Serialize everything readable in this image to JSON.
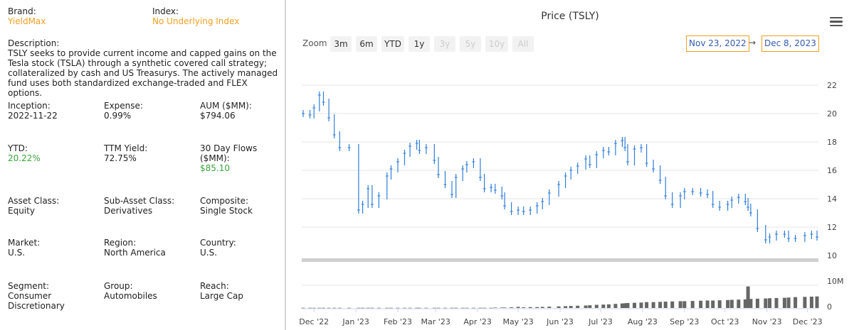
{
  "details": {
    "brand": {
      "label": "Brand:",
      "value": "YieldMax"
    },
    "index": {
      "label": "Index:",
      "value": "No Underlying Index"
    },
    "description": {
      "label": "Description:",
      "value": "TSLY seeks to provide current income and capped gains on the Tesla stock (TSLA) through a synthetic covered call strategy; collateralized by cash and US Treasurys. The actively managed fund uses both standardized exchange-traded and FLEX options."
    },
    "inception": {
      "label": "Inception:",
      "value": "2022-11-22"
    },
    "expense": {
      "label": "Expense:",
      "value": "0.99%"
    },
    "aum": {
      "label": "AUM ($MM):",
      "value": "$794.06"
    },
    "ytd": {
      "label": "YTD:",
      "value": "20.22%"
    },
    "ttm_yield": {
      "label": "TTM Yield:",
      "value": "72.75%"
    },
    "flows": {
      "label": "30 Day Flows ($MM):",
      "value": "$85.10"
    },
    "asset_class": {
      "label": "Asset Class:",
      "value": "Equity"
    },
    "sub_asset_class": {
      "label": "Sub-Asset Class:",
      "value": "Derivatives"
    },
    "composite": {
      "label": "Composite:",
      "value": "Single Stock"
    },
    "market": {
      "label": "Market:",
      "value": "U.S."
    },
    "region": {
      "label": "Region:",
      "value": "North America"
    },
    "country": {
      "label": "Country:",
      "value": "U.S."
    },
    "segment": {
      "label": "Segment:",
      "value": "Consumer Discretionary"
    },
    "group": {
      "label": "Group:",
      "value": "Automobiles"
    },
    "reach": {
      "label": "Reach:",
      "value": "Large Cap"
    }
  },
  "chart": {
    "title": "Price (TSLY)",
    "zoom_label": "Zoom",
    "zoom_buttons": [
      {
        "label": "3m",
        "enabled": true
      },
      {
        "label": "6m",
        "enabled": true
      },
      {
        "label": "YTD",
        "enabled": true
      },
      {
        "label": "1y",
        "enabled": true
      },
      {
        "label": "3y",
        "enabled": false
      },
      {
        "label": "5y",
        "enabled": false
      },
      {
        "label": "10y",
        "enabled": false
      },
      {
        "label": "All",
        "enabled": false
      }
    ],
    "range_from": "Nov 23, 2022",
    "range_arrow": "→",
    "range_to": "Dec 8, 2023",
    "menu_icon": "hamburger-menu-icon",
    "colors": {
      "series": "#2f7ed8",
      "accent": "#f0a020",
      "link": "#335cad",
      "positive": "#3aa33a"
    }
  },
  "chart_data": {
    "type": "line",
    "title": "Price (TSLY)",
    "price_axis": {
      "ticks": [
        10,
        12,
        14,
        16,
        18,
        20,
        22
      ],
      "range": [
        10,
        22
      ]
    },
    "volume_axis": {
      "tick_labels": [
        "0",
        "10M"
      ],
      "range": [
        0,
        10000000
      ]
    },
    "x_axis": {
      "tick_labels": [
        "Dec '22",
        "Jan '23",
        "Feb '23",
        "Mar '23",
        "Apr '23",
        "May '23",
        "Jun '23",
        "Jul '23",
        "Aug '23",
        "Sep '23",
        "Oct '23",
        "Nov '23",
        "Dec '23"
      ]
    },
    "series": [
      {
        "x": [
          "2022-11-23",
          "2022-11-28",
          "2022-12-01",
          "2022-12-05",
          "2022-12-08",
          "2022-12-12",
          "2022-12-16",
          "2022-12-20",
          "2022-12-27",
          "2023-01-03",
          "2023-01-06",
          "2023-01-10",
          "2023-01-13",
          "2023-01-18",
          "2023-01-24",
          "2023-01-27",
          "2023-02-01",
          "2023-02-06",
          "2023-02-10",
          "2023-02-15",
          "2023-02-17",
          "2023-02-22",
          "2023-02-28",
          "2023-03-03",
          "2023-03-08",
          "2023-03-13",
          "2023-03-16",
          "2023-03-21",
          "2023-03-24",
          "2023-03-29",
          "2023-04-03",
          "2023-04-06",
          "2023-04-11",
          "2023-04-14",
          "2023-04-19",
          "2023-04-21",
          "2023-04-26",
          "2023-05-01",
          "2023-05-05",
          "2023-05-10",
          "2023-05-15",
          "2023-05-19",
          "2023-05-24",
          "2023-05-31",
          "2023-06-05",
          "2023-06-09",
          "2023-06-14",
          "2023-06-20",
          "2023-06-23",
          "2023-06-28",
          "2023-07-03",
          "2023-07-07",
          "2023-07-12",
          "2023-07-17",
          "2023-07-19",
          "2023-07-21",
          "2023-07-26",
          "2023-07-31",
          "2023-08-04",
          "2023-08-09",
          "2023-08-14",
          "2023-08-18",
          "2023-08-23",
          "2023-08-29",
          "2023-09-01",
          "2023-09-07",
          "2023-09-13",
          "2023-09-18",
          "2023-09-22",
          "2023-09-27",
          "2023-10-03",
          "2023-10-06",
          "2023-10-11",
          "2023-10-16",
          "2023-10-18",
          "2023-10-20",
          "2023-10-25",
          "2023-10-31",
          "2023-11-03",
          "2023-11-08",
          "2023-11-14",
          "2023-11-17",
          "2023-11-22",
          "2023-11-29",
          "2023-12-04",
          "2023-12-08"
        ],
        "values": [
          20.0,
          19.9,
          20.4,
          21.3,
          20.8,
          19.7,
          18.5,
          17.6,
          17.6,
          13.2,
          13.6,
          14.7,
          13.6,
          14.2,
          15.6,
          16.1,
          16.6,
          17.2,
          17.7,
          17.9,
          17.4,
          17.6,
          16.7,
          15.7,
          15.0,
          14.3,
          15.5,
          16.1,
          16.4,
          16.6,
          15.5,
          14.7,
          14.8,
          14.6,
          14.2,
          13.5,
          13.1,
          13.2,
          13.1,
          13.2,
          13.5,
          13.8,
          14.4,
          15.0,
          15.6,
          16.0,
          16.3,
          16.8,
          16.4,
          17.1,
          17.4,
          17.3,
          17.9,
          18.1,
          17.6,
          16.6,
          17.5,
          17.6,
          16.5,
          16.1,
          15.3,
          14.2,
          13.6,
          14.2,
          14.5,
          14.5,
          14.4,
          14.3,
          13.6,
          13.4,
          13.6,
          13.9,
          14.1,
          13.8,
          13.4,
          13.0,
          11.9,
          11.1,
          11.3,
          11.5,
          11.5,
          11.2,
          11.2,
          11.4,
          11.5,
          11.3
        ]
      }
    ],
    "volume": [
      0.1,
      0.1,
      0.1,
      0.1,
      0.1,
      0.1,
      0.1,
      0.1,
      0.1,
      0.1,
      0.1,
      0.1,
      0.1,
      0.1,
      0.1,
      0.1,
      0.1,
      0.1,
      0.1,
      0.1,
      0.1,
      0.1,
      0.1,
      0.1,
      0.1,
      0.1,
      0.1,
      0.1,
      0.1,
      0.1,
      0.1,
      0.1,
      0.1,
      0.2,
      0.2,
      0.2,
      0.3,
      0.5,
      0.3,
      0.4,
      0.4,
      0.5,
      0.6,
      0.7,
      0.8,
      0.9,
      1.0,
      1.1,
      1.2,
      1.4,
      1.5,
      1.6,
      1.8,
      2.0,
      2.1,
      2.2,
      2.3,
      2.4,
      2.6,
      2.6,
      2.7,
      2.8,
      2.9,
      3.0,
      3.0,
      3.1,
      3.2,
      3.3,
      3.3,
      3.4,
      3.5,
      3.6,
      3.7,
      3.8,
      9.5,
      4.0,
      4.1,
      4.2,
      4.3,
      4.4,
      4.5,
      4.6,
      4.8,
      4.9,
      5.0,
      5.1
    ]
  }
}
